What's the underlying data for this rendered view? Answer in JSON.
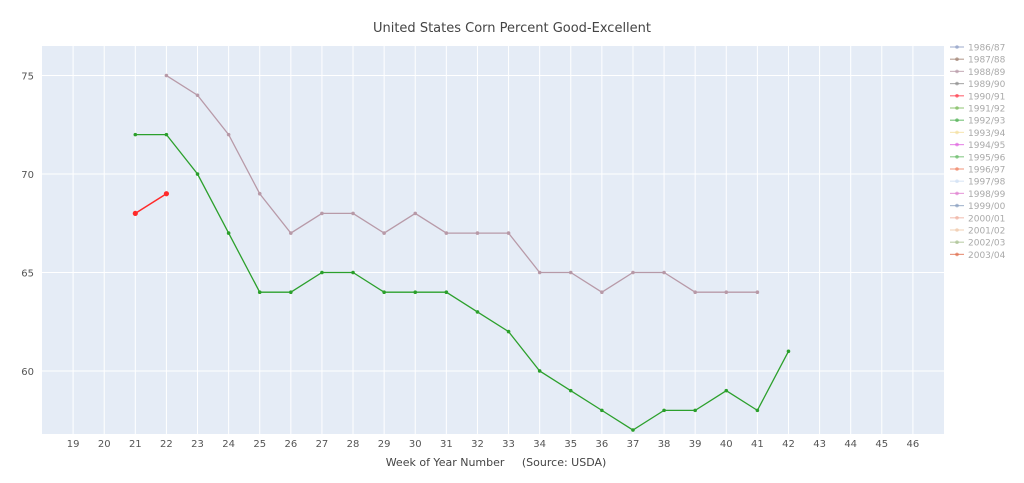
{
  "chart_data": {
    "type": "line",
    "title": "United States Corn Percent Good-Excellent",
    "xlabel": "Week of Year Number     (Source: USDA)",
    "ylabel": "",
    "xlim": [
      18,
      47
    ],
    "ylim": [
      56.8,
      76.5
    ],
    "x_ticks": [
      "19",
      "20",
      "21",
      "22",
      "23",
      "24",
      "25",
      "26",
      "27",
      "28",
      "29",
      "30",
      "31",
      "32",
      "33",
      "34",
      "35",
      "36",
      "37",
      "38",
      "39",
      "40",
      "41",
      "42",
      "43",
      "44",
      "45",
      "46"
    ],
    "y_ticks": [
      "60",
      "65",
      "70",
      "75"
    ],
    "grid": true,
    "legend_position": "right",
    "legend": [
      {
        "name": "1986/87",
        "color": "#8c9cc4"
      },
      {
        "name": "1987/88",
        "color": "#a08070"
      },
      {
        "name": "1988/89",
        "color": "#b89aa8"
      },
      {
        "name": "1989/90",
        "color": "#909090"
      },
      {
        "name": "1990/91",
        "color": "#ff3a4a"
      },
      {
        "name": "1991/92",
        "color": "#7aba5a"
      },
      {
        "name": "1992/93",
        "color": "#4caf50"
      },
      {
        "name": "1993/94",
        "color": "#f4e0a0"
      },
      {
        "name": "1994/95",
        "color": "#e066e0"
      },
      {
        "name": "1995/96",
        "color": "#66bb66"
      },
      {
        "name": "1996/97",
        "color": "#f08060"
      },
      {
        "name": "1997/98",
        "color": "#d0e0f4"
      },
      {
        "name": "1998/99",
        "color": "#e080d0"
      },
      {
        "name": "1999/00",
        "color": "#8aa0c0"
      },
      {
        "name": "2000/01",
        "color": "#f0b0a0"
      },
      {
        "name": "2001/02",
        "color": "#f0c8a8"
      },
      {
        "name": "2002/03",
        "color": "#a8c090"
      },
      {
        "name": "2003/04",
        "color": "#e07050"
      }
    ],
    "series": [
      {
        "name": "1988/89",
        "color": "#b89aa8",
        "x": [
          22,
          23,
          24,
          25,
          26,
          27,
          28,
          29,
          30,
          31,
          32,
          33,
          34,
          35,
          36,
          37,
          38,
          39,
          40,
          41
        ],
        "values": [
          75,
          74,
          72,
          69,
          67,
          68,
          68,
          67,
          68,
          67,
          67,
          67,
          65,
          65,
          64,
          65,
          65,
          64,
          64,
          64
        ]
      },
      {
        "name": "1992/93",
        "color": "#2ca02c",
        "x": [
          21,
          22,
          23,
          24,
          25,
          26,
          27,
          28,
          29,
          30,
          31,
          32,
          33,
          34,
          35,
          36,
          37,
          38,
          39,
          40,
          41,
          42
        ],
        "values": [
          72,
          72,
          70,
          67,
          64,
          64,
          65,
          65,
          64,
          64,
          64,
          63,
          62,
          60,
          59,
          58,
          57,
          58,
          58,
          59,
          58,
          61
        ]
      },
      {
        "name": "1990/91",
        "color": "#ff2a2a",
        "x": [
          21,
          22
        ],
        "values": [
          68,
          69
        ]
      }
    ]
  }
}
